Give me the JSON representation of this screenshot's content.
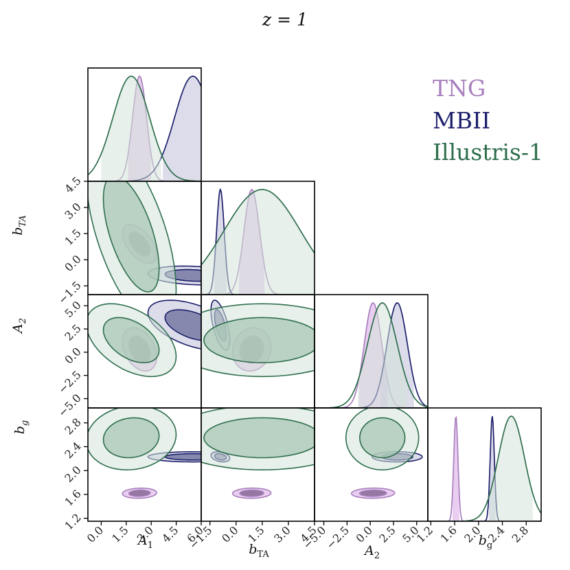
{
  "title": "z = 1",
  "chart_data": {
    "type": "corner",
    "params": [
      {
        "key": "A1",
        "label": "A",
        "sub": "1",
        "range": [
          -0.8,
          6.0
        ],
        "ticks": [
          0.0,
          1.5,
          3.0,
          4.5,
          6.0
        ],
        "tick_labels": [
          "0.0",
          "1.5",
          "3.0",
          "4.5",
          "6.0"
        ]
      },
      {
        "key": "bTA",
        "label": "b",
        "sub": "TA",
        "range": [
          -2.0,
          4.5
        ],
        "ticks": [
          -1.5,
          0.0,
          1.5,
          3.0,
          4.5
        ],
        "tick_labels": [
          "−1.5",
          "0.0",
          "1.5",
          "3.0",
          "4.5"
        ]
      },
      {
        "key": "A2",
        "label": "A",
        "sub": "2",
        "range": [
          -6.0,
          6.2
        ],
        "ticks": [
          -5.0,
          -2.5,
          0.0,
          2.5,
          5.0
        ],
        "tick_labels": [
          "−5.0",
          "−2.5",
          "0.0",
          "2.5",
          "5.0"
        ]
      },
      {
        "key": "bg",
        "label": "b",
        "sub": "g",
        "range": [
          1.15,
          3.05
        ],
        "ticks": [
          1.2,
          1.6,
          2.0,
          2.4,
          2.8
        ],
        "tick_labels": [
          "1.2",
          "1.6",
          "2.0",
          "2.4",
          "2.8"
        ]
      }
    ],
    "series": [
      {
        "name": "TNG",
        "color": "#a77fbd",
        "fill": "#d9a6e6",
        "fill_inner": "#7a5a85",
        "means": {
          "A1": 2.3,
          "bTA": 0.9,
          "A2": 0.3,
          "bg": 1.62
        },
        "sigmas": {
          "A1": 0.42,
          "bTA": 0.45,
          "A2": 0.95,
          "bg": 0.035
        },
        "corr": {
          "A1-bTA": -0.55,
          "A1-A2": -0.35,
          "bTA-A2": 0.1,
          "A1-bg": 0.1,
          "bTA-bg": 0.05,
          "A2-bg": 0.05
        }
      },
      {
        "name": "MBII",
        "color": "#1c1f6b",
        "fill": "#bfc0d8",
        "fill_inner": "#6a6e98",
        "means": {
          "A1": 5.5,
          "bTA": -0.9,
          "A2": 2.9,
          "bg": 2.23
        },
        "sigmas": {
          "A1": 1.1,
          "bTA": 0.22,
          "A2": 1.1,
          "bg": 0.035
        },
        "corr": {
          "A1-bTA": -0.2,
          "A1-A2": -0.5,
          "bTA-A2": -0.6,
          "A1-bg": 0.0,
          "bTA-bg": -0.3,
          "A2-bg": 0.0
        }
      },
      {
        "name": "Illustris-1",
        "color": "#2e6e4c",
        "fill": "#d3e3d9",
        "fill_inner": "#aac8b5",
        "means": {
          "A1": 1.8,
          "bTA": 1.5,
          "A2": 1.3,
          "bg": 2.55
        },
        "sigmas": {
          "A1": 1.1,
          "bTA": 2.2,
          "A2": 1.6,
          "bg": 0.22
        },
        "corr": {
          "A1-bTA": -0.6,
          "A1-A2": -0.45,
          "bTA-A2": 0.0,
          "A1-bg": 0.1,
          "bTA-bg": 0.0,
          "A2-bg": 0.0
        }
      }
    ],
    "legend": {
      "position": "top-right",
      "entries": [
        "TNG",
        "MBII",
        "Illustris-1"
      ]
    }
  }
}
